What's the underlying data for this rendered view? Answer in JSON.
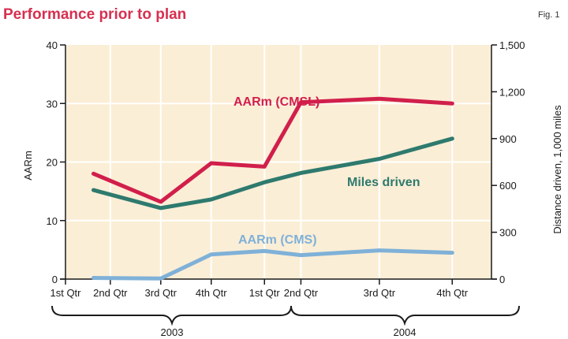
{
  "chart_data": {
    "type": "line",
    "title": "Performance prior to plan",
    "figure_label": "Fig. 1",
    "categories": [
      "1st Qtr",
      "2nd Qtr",
      "3rd Qtr",
      "4th Qtr",
      "1st Qtr",
      "2nd Qtr",
      "3rd Qtr",
      "4th Qtr"
    ],
    "year_groups": [
      "2003",
      "2004"
    ],
    "ylabel": "AARm",
    "ylabel_right": "Distance driven, 1,000 miles",
    "ylim": [
      0,
      40
    ],
    "ylim_right": [
      0,
      1500
    ],
    "y_ticks": [
      "0",
      "10",
      "20",
      "30",
      "40"
    ],
    "y_ticks_right": [
      "0",
      "300",
      "600",
      "900",
      "1,200",
      "1,500"
    ],
    "x_points": [
      0,
      0.8,
      1.7,
      2.6,
      3.55,
      4.2,
      5.6,
      6.9
    ],
    "series": [
      {
        "name": "AARm (CMSL)",
        "axis": "left",
        "color": "#d11f4b",
        "x": [
          0.5,
          1.7,
          2.6,
          3.55,
          4.2,
          5.6,
          6.9
        ],
        "values": [
          18.0,
          13.2,
          19.8,
          19.2,
          30.2,
          30.8,
          30.0
        ]
      },
      {
        "name": "Miles driven",
        "axis": "right",
        "color": "#2e7a6e",
        "x": [
          0.5,
          1.7,
          2.6,
          3.55,
          4.2,
          5.6,
          6.9
        ],
        "values": [
          570,
          455,
          510,
          620,
          680,
          770,
          900
        ]
      },
      {
        "name": "AARm (CMS)",
        "axis": "left",
        "color": "#7fb1d8",
        "x": [
          0.5,
          1.7,
          2.6,
          3.55,
          4.2,
          5.6,
          6.9
        ],
        "values": [
          0.2,
          0.1,
          4.2,
          4.8,
          4.1,
          4.9,
          4.5
        ]
      }
    ]
  }
}
